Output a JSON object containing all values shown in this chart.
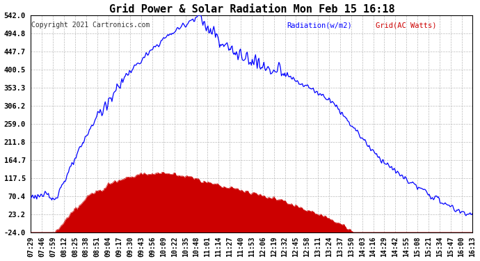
{
  "title": "Grid Power & Solar Radiation Mon Feb 15 16:18",
  "copyright": "Copyright 2021 Cartronics.com",
  "legend_radiation": "Radiation(w/m2)",
  "legend_grid": "Grid(AC Watts)",
  "yticks": [
    542.0,
    494.8,
    447.7,
    400.5,
    353.3,
    306.2,
    259.0,
    211.8,
    164.7,
    117.5,
    70.4,
    23.2,
    -24.0
  ],
  "ymin": -24.0,
  "ymax": 542.0,
  "radiation_color": "#0000ff",
  "grid_color": "#cc0000",
  "bg_color": "#ffffff",
  "plot_bg_color": "#ffffff",
  "grid_line_color": "#bbbbbb",
  "xtick_labels": [
    "07:29",
    "07:46",
    "07:59",
    "08:12",
    "08:25",
    "08:38",
    "08:51",
    "09:04",
    "09:17",
    "09:30",
    "09:43",
    "09:56",
    "10:09",
    "10:22",
    "10:35",
    "10:48",
    "11:01",
    "11:14",
    "11:27",
    "11:40",
    "11:53",
    "12:06",
    "12:19",
    "12:32",
    "12:45",
    "12:58",
    "13:11",
    "13:24",
    "13:37",
    "13:50",
    "14:03",
    "14:16",
    "14:29",
    "14:42",
    "14:55",
    "15:08",
    "15:21",
    "15:34",
    "15:47",
    "16:00",
    "16:13"
  ],
  "title_fontsize": 11,
  "tick_fontsize": 7.5
}
